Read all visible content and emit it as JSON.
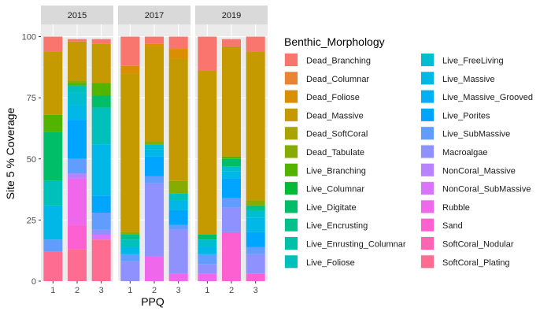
{
  "chart_data": {
    "type": "bar",
    "stacked": true,
    "facet_labels": [
      "2015",
      "2017",
      "2019"
    ],
    "categories": [
      "1",
      "2",
      "3"
    ],
    "xlabel": "PPQ",
    "ylabel": "Site 5 % Coverage",
    "ylim": [
      0,
      105
    ],
    "yticks": [
      0,
      25,
      50,
      75,
      100
    ],
    "grid": true,
    "legend": {
      "title": "Benthic_Morphology",
      "placement": "right",
      "columns": 2,
      "entries": [
        {
          "name": "Dead_Branching",
          "color": "#F8766D"
        },
        {
          "name": "Dead_Columnar",
          "color": "#EB8335"
        },
        {
          "name": "Dead_Foliose",
          "color": "#DA8F00"
        },
        {
          "name": "Dead_Massive",
          "color": "#C49A00"
        },
        {
          "name": "Dead_SoftCoral",
          "color": "#A9A400"
        },
        {
          "name": "Dead_Tabulate",
          "color": "#86AC00"
        },
        {
          "name": "Live_Branching",
          "color": "#53B400"
        },
        {
          "name": "Live_Columnar",
          "color": "#00BA38"
        },
        {
          "name": "Live_Digitate",
          "color": "#00BE67"
        },
        {
          "name": "Live_Encrusting",
          "color": "#00C08B"
        },
        {
          "name": "Live_Enrusting_Columnar",
          "color": "#00C1A7"
        },
        {
          "name": "Live_Foliose",
          "color": "#00C0BB"
        },
        {
          "name": "Live_FreeLiving",
          "color": "#00BDD0"
        },
        {
          "name": "Live_Massive",
          "color": "#00B8E7"
        },
        {
          "name": "Live_Massive_Grooved",
          "color": "#00B0F6"
        },
        {
          "name": "Live_Porites",
          "color": "#00A5FF"
        },
        {
          "name": "Live_SubMassive",
          "color": "#619CFF"
        },
        {
          "name": "Macroalgae",
          "color": "#8F91FF"
        },
        {
          "name": "NonCoral_Massive",
          "color": "#B983FF"
        },
        {
          "name": "NonCoral_SubMassive",
          "color": "#D874FD"
        },
        {
          "name": "Rubble",
          "color": "#EF67EB"
        },
        {
          "name": "Sand",
          "color": "#FD61D1"
        },
        {
          "name": "SoftCoral_Nodular",
          "color": "#FF64B0"
        },
        {
          "name": "SoftCoral_Plating",
          "color": "#FF6C91"
        }
      ]
    },
    "panels": [
      {
        "facet": "2015",
        "bars": [
          {
            "x": "1",
            "segments": [
              {
                "series": "SoftCoral_Plating",
                "value": 12
              },
              {
                "series": "Live_SubMassive",
                "value": 5
              },
              {
                "series": "Live_Massive",
                "value": 14
              },
              {
                "series": "Live_Foliose",
                "value": 10
              },
              {
                "series": "Live_Digitate",
                "value": 20
              },
              {
                "series": "Live_Branching",
                "value": 7
              },
              {
                "series": "Dead_Massive",
                "value": 26
              },
              {
                "series": "Dead_Branching",
                "value": 6
              }
            ]
          },
          {
            "x": "2",
            "segments": [
              {
                "series": "SoftCoral_Plating",
                "value": 13
              },
              {
                "series": "Sand",
                "value": 10
              },
              {
                "series": "Rubble",
                "value": 19
              },
              {
                "series": "NonCoral_Massive",
                "value": 2
              },
              {
                "series": "Live_SubMassive",
                "value": 6
              },
              {
                "series": "Live_Porites",
                "value": 16
              },
              {
                "series": "Live_Massive",
                "value": 6
              },
              {
                "series": "Live_FreeLiving",
                "value": 5
              },
              {
                "series": "Live_Foliose",
                "value": 3
              },
              {
                "series": "Live_Branching",
                "value": 1
              },
              {
                "series": "Dead_Tabulate",
                "value": 1
              },
              {
                "series": "Dead_Massive",
                "value": 16
              },
              {
                "series": "Dead_Branching",
                "value": 1
              }
            ]
          },
          {
            "x": "3",
            "segments": [
              {
                "series": "SoftCoral_Plating",
                "value": 17
              },
              {
                "series": "NonCoral_SubMassive",
                "value": 2
              },
              {
                "series": "Macroalgae",
                "value": 2
              },
              {
                "series": "Live_SubMassive",
                "value": 7
              },
              {
                "series": "Live_Porites",
                "value": 7
              },
              {
                "series": "Live_Massive",
                "value": 21
              },
              {
                "series": "Live_Foliose",
                "value": 15
              },
              {
                "series": "Live_Digitate",
                "value": 5
              },
              {
                "series": "Live_Branching",
                "value": 5
              },
              {
                "series": "Dead_Massive",
                "value": 16
              },
              {
                "series": "Dead_Branching",
                "value": 2
              }
            ]
          }
        ]
      },
      {
        "facet": "2017",
        "bars": [
          {
            "x": "1",
            "segments": [
              {
                "series": "Macroalgae",
                "value": 8
              },
              {
                "series": "Live_SubMassive",
                "value": 3
              },
              {
                "series": "Live_Massive",
                "value": 3
              },
              {
                "series": "Live_Foliose",
                "value": 3
              },
              {
                "series": "Live_Encrusting",
                "value": 2
              },
              {
                "series": "Dead_Tabulate",
                "value": 1
              },
              {
                "series": "Dead_Massive",
                "value": 65
              },
              {
                "series": "Dead_Foliose",
                "value": 3
              },
              {
                "series": "Dead_Branching",
                "value": 12
              }
            ]
          },
          {
            "x": "2",
            "segments": [
              {
                "series": "Rubble",
                "value": 10
              },
              {
                "series": "Macroalgae",
                "value": 30
              },
              {
                "series": "Live_SubMassive",
                "value": 3
              },
              {
                "series": "Live_Porites",
                "value": 8
              },
              {
                "series": "Live_Massive",
                "value": 3
              },
              {
                "series": "Live_FreeLiving",
                "value": 2
              },
              {
                "series": "Dead_Tabulate",
                "value": 1
              },
              {
                "series": "Dead_Massive",
                "value": 39
              },
              {
                "series": "Dead_Foliose",
                "value": 1
              },
              {
                "series": "Dead_Branching",
                "value": 3
              }
            ]
          },
          {
            "x": "3",
            "segments": [
              {
                "series": "Rubble",
                "value": 3
              },
              {
                "series": "Macroalgae",
                "value": 18
              },
              {
                "series": "Live_SubMassive",
                "value": 2
              },
              {
                "series": "Live_Porites",
                "value": 6
              },
              {
                "series": "Live_Massive",
                "value": 4
              },
              {
                "series": "Live_Foliose",
                "value": 3
              },
              {
                "series": "Dead_Tabulate",
                "value": 5
              },
              {
                "series": "Dead_Massive",
                "value": 50
              },
              {
                "series": "Dead_Foliose",
                "value": 4
              },
              {
                "series": "Dead_Branching",
                "value": 5
              }
            ]
          }
        ]
      },
      {
        "facet": "2019",
        "bars": [
          {
            "x": "1",
            "segments": [
              {
                "series": "Rubble",
                "value": 3
              },
              {
                "series": "Macroalgae",
                "value": 4
              },
              {
                "series": "Live_SubMassive",
                "value": 4
              },
              {
                "series": "Live_Massive",
                "value": 3
              },
              {
                "series": "Live_FreeLiving",
                "value": 3
              },
              {
                "series": "Live_Digitate",
                "value": 2
              },
              {
                "series": "Dead_Massive",
                "value": 67
              },
              {
                "series": "Dead_Branching",
                "value": 14
              }
            ]
          },
          {
            "x": "2",
            "segments": [
              {
                "series": "Sand",
                "value": 20
              },
              {
                "series": "Macroalgae",
                "value": 10
              },
              {
                "series": "Live_SubMassive",
                "value": 4
              },
              {
                "series": "Live_Porites",
                "value": 8
              },
              {
                "series": "Live_Massive",
                "value": 3
              },
              {
                "series": "Live_FreeLiving",
                "value": 2
              },
              {
                "series": "Live_Digitate",
                "value": 3
              },
              {
                "series": "Live_Branching",
                "value": 1
              },
              {
                "series": "Dead_Massive",
                "value": 45
              },
              {
                "series": "Dead_Branching",
                "value": 3
              }
            ]
          },
          {
            "x": "3",
            "segments": [
              {
                "series": "Sand",
                "value": 3
              },
              {
                "series": "Macroalgae",
                "value": 8
              },
              {
                "series": "Live_SubMassive",
                "value": 3
              },
              {
                "series": "Live_Porites",
                "value": 6
              },
              {
                "series": "Live_Massive",
                "value": 6
              },
              {
                "series": "Live_FreeLiving",
                "value": 3
              },
              {
                "series": "Live_Encrusting",
                "value": 2
              },
              {
                "series": "Dead_Tabulate",
                "value": 2
              },
              {
                "series": "Dead_Massive",
                "value": 61
              },
              {
                "series": "Dead_Branching",
                "value": 6
              }
            ]
          }
        ]
      }
    ]
  }
}
